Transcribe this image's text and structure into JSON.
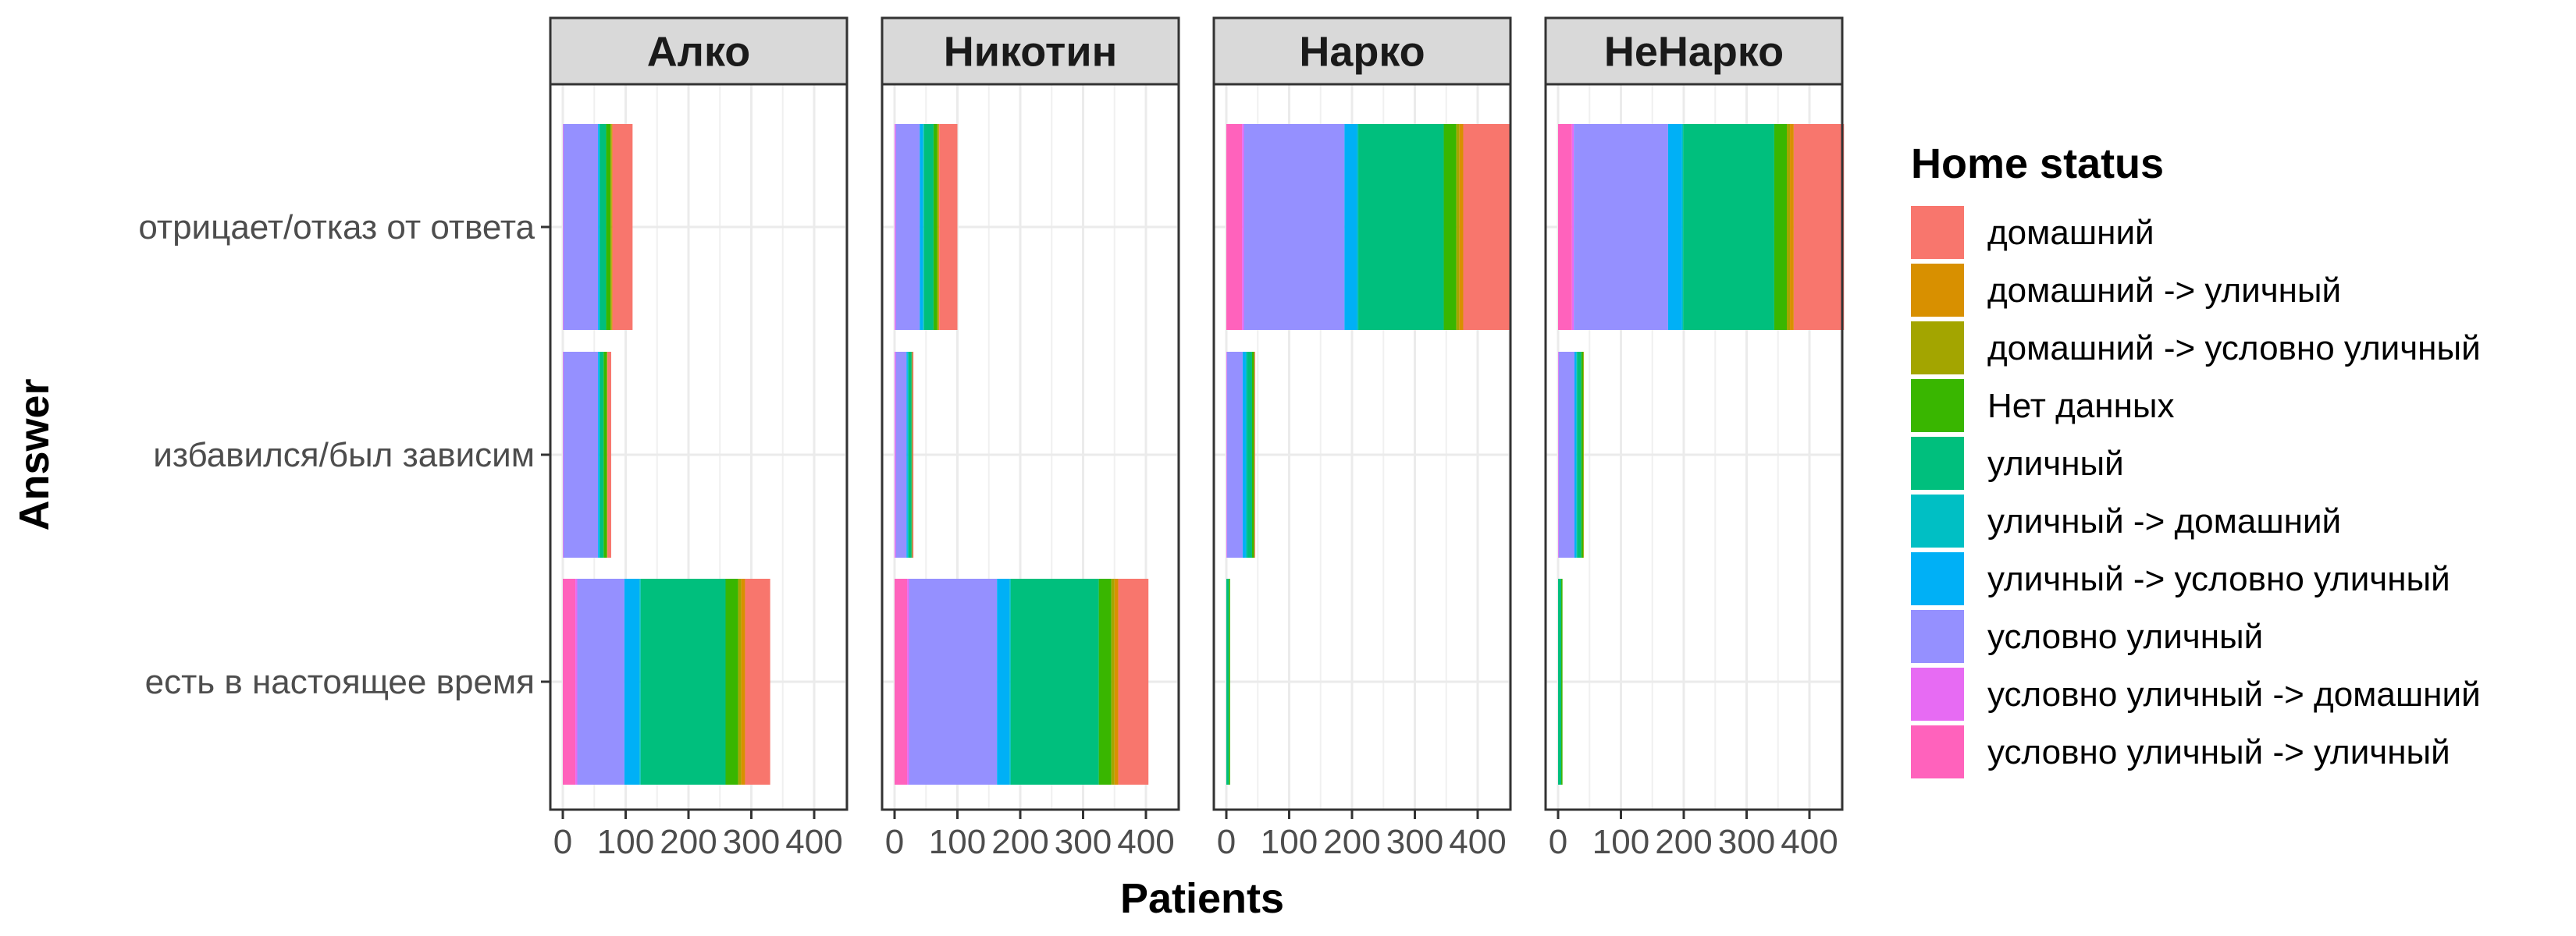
{
  "chart_data": {
    "type": "bar",
    "orientation": "horizontal",
    "stacked": true,
    "xlabel": "Patients",
    "ylabel": "Answer",
    "xlim": [
      0,
      460
    ],
    "x_ticks": [
      0,
      100,
      200,
      300,
      400
    ],
    "categories": [
      "отрицает/отказ от ответа",
      "избавился/был зависим",
      "есть в настоящее время"
    ],
    "legend": {
      "title": "Home status",
      "position": "right",
      "entries": [
        {
          "label": "домашний",
          "color": "#F8766D"
        },
        {
          "label": "домашний -> уличный",
          "color": "#D89000"
        },
        {
          "label": "домашний -> условно уличный",
          "color": "#A3A500"
        },
        {
          "label": "Нет данных",
          "color": "#39B600"
        },
        {
          "label": "уличный",
          "color": "#00BF7D"
        },
        {
          "label": "уличный -> домашний",
          "color": "#00BFC4"
        },
        {
          "label": "уличный -> условно уличный",
          "color": "#00B0F6"
        },
        {
          "label": "условно уличный",
          "color": "#9590FF"
        },
        {
          "label": "условно уличный -> домашний",
          "color": "#E76BF3"
        },
        {
          "label": "условно уличный -> уличный",
          "color": "#FF62BC"
        }
      ]
    },
    "stack_order_from_zero": [
      "условно уличный -> уличный",
      "условно уличный -> домашний",
      "условно уличный",
      "уличный -> условно уличный",
      "уличный -> домашний",
      "уличный",
      "Нет данных",
      "домашний -> условно уличный",
      "домашний -> уличный",
      "домашний"
    ],
    "grid": true,
    "panels": [
      {
        "title": "Алко",
        "bars": [
          {
            "category": "отрицает/отказ от ответа",
            "values": [
              0,
              1,
              55,
              2,
              1,
              10,
              7,
              2,
              1,
              32
            ]
          },
          {
            "category": "избавился/был зависим",
            "values": [
              0,
              1,
              55,
              2,
              1,
              6,
              5,
              1,
              0,
              6
            ]
          },
          {
            "category": "есть в настоящее время",
            "values": [
              20,
              3,
              75,
              24,
              2,
              135,
              20,
              5,
              6,
              40
            ]
          }
        ]
      },
      {
        "title": "Никотин",
        "bars": [
          {
            "category": "отрицает/отказ от ответа",
            "values": [
              0,
              2,
              38,
              5,
              2,
              15,
              6,
              2,
              1,
              29
            ]
          },
          {
            "category": "избавился/был зависим",
            "values": [
              0,
              2,
              17,
              2,
              1,
              5,
              1,
              0,
              0,
              2
            ]
          },
          {
            "category": "есть в настоящее время",
            "values": [
              20,
              3,
              140,
              20,
              2,
              140,
              20,
              5,
              6,
              48
            ]
          }
        ]
      },
      {
        "title": "Нарко",
        "bars": [
          {
            "category": "отрицает/отказ от ответа",
            "values": [
              25,
              3,
              160,
              20,
              2,
              136,
              20,
              5,
              6,
              75
            ]
          },
          {
            "category": "избавился/был зависим",
            "values": [
              0,
              1,
              25,
              5,
              2,
              8,
              3,
              1,
              0,
              1
            ]
          },
          {
            "category": "есть в настоящее время",
            "values": [
              0,
              0,
              0,
              0,
              0,
              4,
              2,
              0,
              0,
              0
            ]
          }
        ]
      },
      {
        "title": "НеНарко",
        "bars": [
          {
            "category": "отрицает/отказ от ответа",
            "values": [
              22,
              3,
              150,
              22,
              2,
              145,
              20,
              5,
              6,
              80
            ]
          },
          {
            "category": "избавился/был зависим",
            "values": [
              0,
              1,
              25,
              3,
              1,
              7,
              3,
              1,
              0,
              0
            ]
          },
          {
            "category": "есть в настоящее время",
            "values": [
              0,
              0,
              0,
              0,
              0,
              5,
              2,
              0,
              0,
              0
            ]
          }
        ]
      }
    ]
  }
}
